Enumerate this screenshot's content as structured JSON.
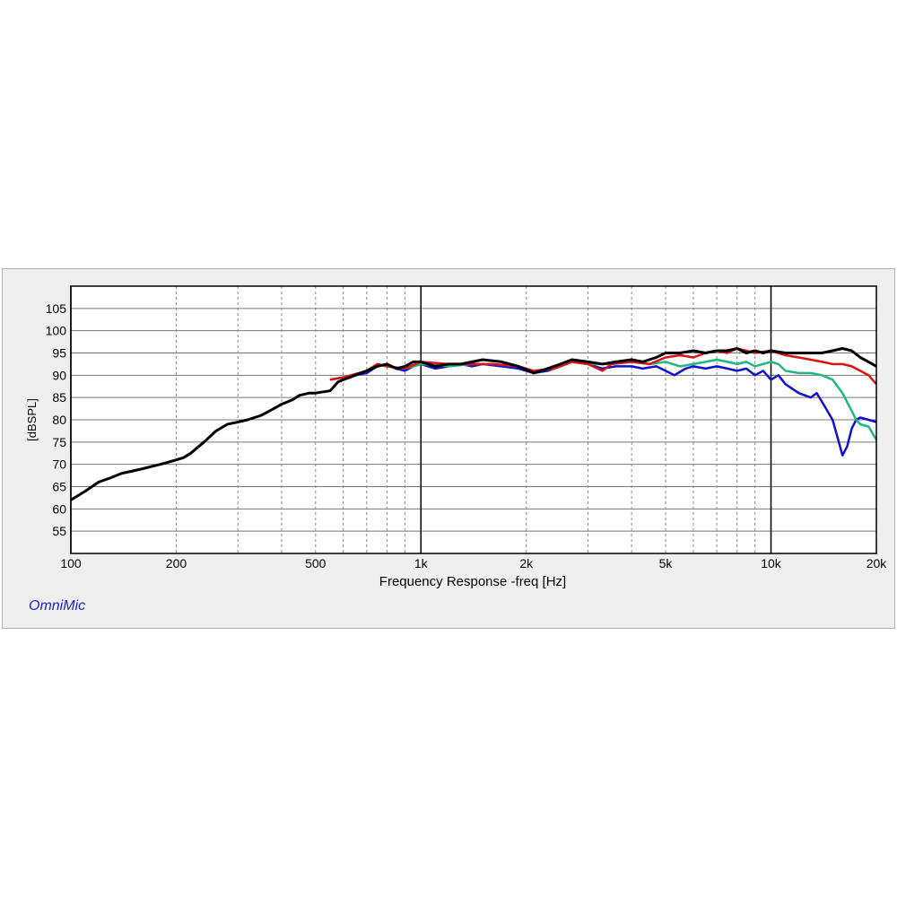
{
  "app": {
    "brand_label": "OmniMic"
  },
  "chart_data": {
    "type": "line",
    "xlabel": "Frequency Response -freq [Hz]",
    "ylabel": "[dBSPL]",
    "xscale": "log",
    "xlim": [
      100,
      20000
    ],
    "ylim": [
      50,
      110
    ],
    "grid": true,
    "legend": "none",
    "x_ticks": [
      {
        "value": 100,
        "label": "100"
      },
      {
        "value": 200,
        "label": "200"
      },
      {
        "value": 500,
        "label": "500"
      },
      {
        "value": 1000,
        "label": "1k"
      },
      {
        "value": 2000,
        "label": "2k"
      },
      {
        "value": 5000,
        "label": "5k"
      },
      {
        "value": 10000,
        "label": "10k"
      },
      {
        "value": 20000,
        "label": "20k"
      }
    ],
    "y_ticks": [
      55,
      60,
      65,
      70,
      75,
      80,
      85,
      90,
      95,
      100,
      105
    ],
    "series": [
      {
        "color": "#1010d0",
        "points": [
          [
            550,
            89
          ],
          [
            600,
            89.5
          ],
          [
            650,
            90
          ],
          [
            700,
            90.5
          ],
          [
            750,
            92
          ],
          [
            800,
            92.5
          ],
          [
            850,
            91.5
          ],
          [
            900,
            91
          ],
          [
            950,
            92
          ],
          [
            1000,
            92.5
          ],
          [
            1100,
            91.5
          ],
          [
            1200,
            92
          ],
          [
            1300,
            92.5
          ],
          [
            1400,
            92
          ],
          [
            1500,
            92.5
          ],
          [
            1700,
            92
          ],
          [
            1900,
            91.5
          ],
          [
            2100,
            90.5
          ],
          [
            2300,
            91
          ],
          [
            2500,
            92
          ],
          [
            2700,
            93
          ],
          [
            3000,
            92.5
          ],
          [
            3300,
            91.5
          ],
          [
            3600,
            92
          ],
          [
            4000,
            92
          ],
          [
            4300,
            91.5
          ],
          [
            4700,
            92
          ],
          [
            5000,
            91
          ],
          [
            5300,
            90
          ],
          [
            5700,
            91.5
          ],
          [
            6000,
            92
          ],
          [
            6500,
            91.5
          ],
          [
            7000,
            92
          ],
          [
            7500,
            91.5
          ],
          [
            8000,
            91
          ],
          [
            8500,
            91.5
          ],
          [
            9000,
            90
          ],
          [
            9500,
            91
          ],
          [
            10000,
            89
          ],
          [
            10500,
            90
          ],
          [
            11000,
            88
          ],
          [
            12000,
            86
          ],
          [
            13000,
            85
          ],
          [
            13500,
            86
          ],
          [
            14000,
            84
          ],
          [
            15000,
            80
          ],
          [
            15500,
            76
          ],
          [
            16000,
            72
          ],
          [
            16500,
            74
          ],
          [
            17000,
            78
          ],
          [
            17500,
            80
          ],
          [
            18000,
            80.5
          ],
          [
            19000,
            80
          ],
          [
            20000,
            79.5
          ]
        ]
      },
      {
        "color": "#20b880",
        "points": [
          [
            550,
            89
          ],
          [
            600,
            89.5
          ],
          [
            700,
            91
          ],
          [
            750,
            92.5
          ],
          [
            800,
            92
          ],
          [
            900,
            91.5
          ],
          [
            1000,
            92.5
          ],
          [
            1200,
            92
          ],
          [
            1400,
            92.5
          ],
          [
            1600,
            92.5
          ],
          [
            1900,
            92
          ],
          [
            2100,
            91
          ],
          [
            2400,
            91.5
          ],
          [
            2700,
            93
          ],
          [
            3000,
            92.5
          ],
          [
            3500,
            92.5
          ],
          [
            4000,
            93
          ],
          [
            4500,
            92.5
          ],
          [
            5000,
            93
          ],
          [
            5500,
            92
          ],
          [
            6000,
            92.5
          ],
          [
            6500,
            93
          ],
          [
            7000,
            93.5
          ],
          [
            7500,
            93
          ],
          [
            8000,
            92.5
          ],
          [
            8500,
            93
          ],
          [
            9000,
            92
          ],
          [
            10000,
            93
          ],
          [
            10500,
            92.5
          ],
          [
            11000,
            91
          ],
          [
            12000,
            90.5
          ],
          [
            13000,
            90.5
          ],
          [
            14000,
            90
          ],
          [
            15000,
            89
          ],
          [
            16000,
            86
          ],
          [
            17000,
            82
          ],
          [
            17500,
            80
          ],
          [
            18000,
            79
          ],
          [
            19000,
            78.5
          ],
          [
            20000,
            75.5
          ]
        ]
      },
      {
        "color": "#e01010",
        "points": [
          [
            550,
            89
          ],
          [
            600,
            89.5
          ],
          [
            700,
            91
          ],
          [
            750,
            92.5
          ],
          [
            800,
            92
          ],
          [
            900,
            91.5
          ],
          [
            1000,
            93
          ],
          [
            1200,
            92.5
          ],
          [
            1400,
            92.5
          ],
          [
            1600,
            92.5
          ],
          [
            1900,
            92
          ],
          [
            2100,
            91
          ],
          [
            2400,
            91.5
          ],
          [
            2700,
            93
          ],
          [
            3000,
            92.5
          ],
          [
            3300,
            91
          ],
          [
            3500,
            92.5
          ],
          [
            4000,
            93
          ],
          [
            4500,
            92.5
          ],
          [
            5000,
            94
          ],
          [
            5500,
            94.5
          ],
          [
            6000,
            94
          ],
          [
            6500,
            95
          ],
          [
            7000,
            95.5
          ],
          [
            7500,
            95
          ],
          [
            8000,
            96
          ],
          [
            8500,
            95.5
          ],
          [
            9000,
            95
          ],
          [
            10000,
            95.5
          ],
          [
            11000,
            94.5
          ],
          [
            12000,
            94
          ],
          [
            13000,
            93.5
          ],
          [
            14000,
            93
          ],
          [
            15000,
            92.5
          ],
          [
            16000,
            92.5
          ],
          [
            17000,
            92
          ],
          [
            18000,
            91
          ],
          [
            19000,
            90
          ],
          [
            20000,
            88
          ]
        ]
      },
      {
        "color": "#000000",
        "points": [
          [
            100,
            62
          ],
          [
            110,
            64
          ],
          [
            120,
            66
          ],
          [
            130,
            67
          ],
          [
            140,
            68
          ],
          [
            150,
            68.5
          ],
          [
            160,
            69
          ],
          [
            170,
            69.5
          ],
          [
            180,
            70
          ],
          [
            190,
            70.5
          ],
          [
            200,
            71
          ],
          [
            210,
            71.5
          ],
          [
            220,
            72.5
          ],
          [
            240,
            75
          ],
          [
            260,
            77.5
          ],
          [
            280,
            79
          ],
          [
            300,
            79.5
          ],
          [
            320,
            80
          ],
          [
            350,
            81
          ],
          [
            380,
            82.5
          ],
          [
            400,
            83.5
          ],
          [
            430,
            84.5
          ],
          [
            450,
            85.5
          ],
          [
            480,
            86
          ],
          [
            500,
            86
          ],
          [
            550,
            86.5
          ],
          [
            580,
            88.5
          ],
          [
            600,
            89
          ],
          [
            650,
            90
          ],
          [
            700,
            91
          ],
          [
            750,
            92
          ],
          [
            800,
            92.5
          ],
          [
            850,
            91.5
          ],
          [
            900,
            92
          ],
          [
            950,
            93
          ],
          [
            1000,
            93
          ],
          [
            1100,
            92
          ],
          [
            1200,
            92.5
          ],
          [
            1300,
            92.5
          ],
          [
            1400,
            93
          ],
          [
            1500,
            93.5
          ],
          [
            1700,
            93
          ],
          [
            1900,
            92
          ],
          [
            2100,
            90.5
          ],
          [
            2300,
            91.5
          ],
          [
            2500,
            92.5
          ],
          [
            2700,
            93.5
          ],
          [
            3000,
            93
          ],
          [
            3300,
            92.5
          ],
          [
            3600,
            93
          ],
          [
            4000,
            93.5
          ],
          [
            4300,
            93
          ],
          [
            4700,
            94
          ],
          [
            5000,
            95
          ],
          [
            5500,
            95
          ],
          [
            6000,
            95.5
          ],
          [
            6500,
            95
          ],
          [
            7000,
            95.5
          ],
          [
            7500,
            95.5
          ],
          [
            8000,
            96
          ],
          [
            8500,
            95
          ],
          [
            9000,
            95.5
          ],
          [
            9500,
            95
          ],
          [
            10000,
            95.5
          ],
          [
            11000,
            95
          ],
          [
            12000,
            95
          ],
          [
            13000,
            95
          ],
          [
            14000,
            95
          ],
          [
            15000,
            95.5
          ],
          [
            16000,
            96
          ],
          [
            17000,
            95.5
          ],
          [
            18000,
            94
          ],
          [
            19000,
            93
          ],
          [
            20000,
            92
          ]
        ]
      }
    ]
  }
}
